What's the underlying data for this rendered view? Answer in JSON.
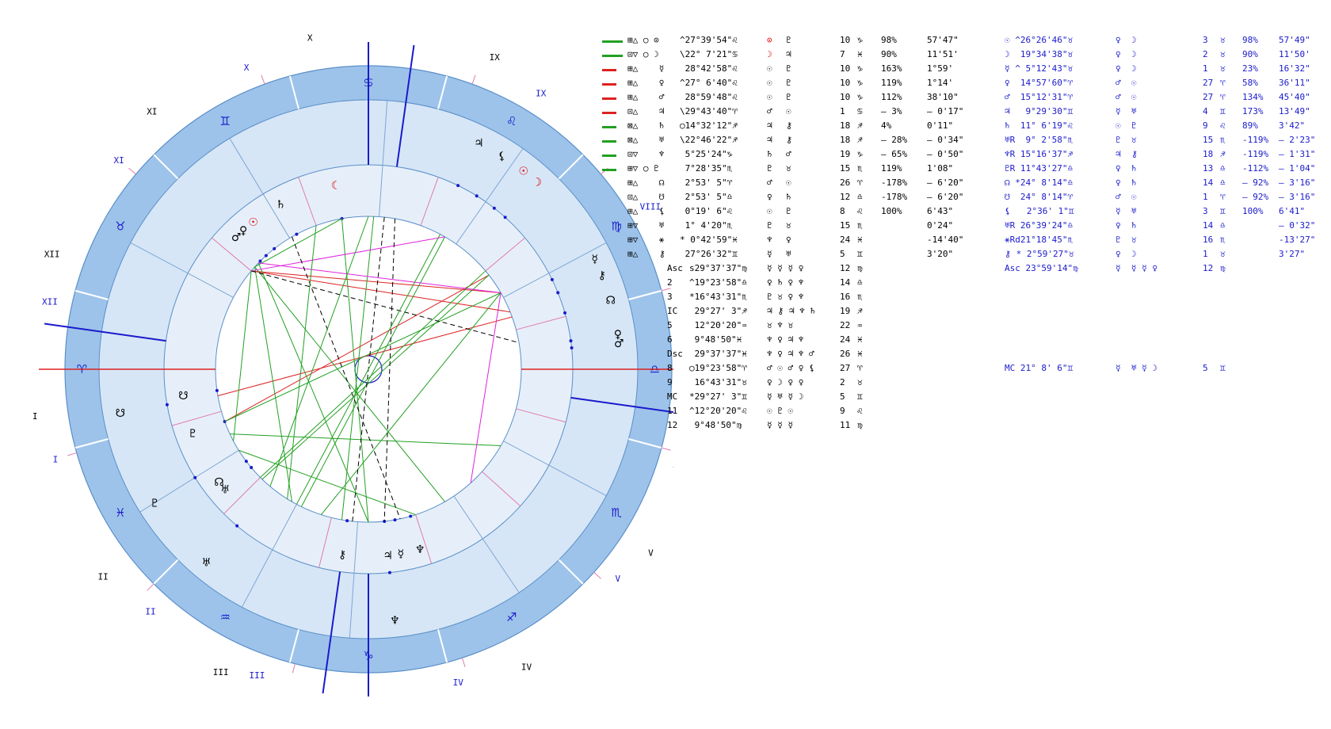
{
  "wheel": {
    "outer_house_labels": [
      {
        "label": "X"
      },
      {
        "label": "IX"
      },
      {
        "label": "XI"
      },
      {
        "label": "XII"
      },
      {
        "label": "I"
      },
      {
        "label": "II"
      },
      {
        "label": "III"
      },
      {
        "label": "IV"
      },
      {
        "label": "V"
      },
      {
        "label": "VI"
      },
      {
        "label": "VII"
      },
      {
        "label": "VIII"
      }
    ],
    "inner_house_labels": [
      {
        "label": "X"
      },
      {
        "label": "IX"
      },
      {
        "label": "XI"
      },
      {
        "label": "XII"
      },
      {
        "label": "I"
      },
      {
        "label": "II"
      },
      {
        "label": "III"
      },
      {
        "label": "IV"
      },
      {
        "label": "V"
      },
      {
        "label": "VI"
      },
      {
        "label": "VII"
      },
      {
        "label": "VIII"
      }
    ],
    "zodiac_signs": [
      "♋",
      "♊",
      "♉",
      "♈",
      "♓",
      "♒",
      "♑",
      "♐",
      "♏",
      "♎",
      "♍",
      "♌"
    ],
    "inner_planets": [
      {
        "glyph": "♄"
      },
      {
        "glyph": "☾"
      },
      {
        "glyph": "♂"
      },
      {
        "glyph": "♀"
      },
      {
        "glyph": "☉"
      },
      {
        "glyph": "☋"
      },
      {
        "glyph": "♇"
      },
      {
        "glyph": "☊"
      },
      {
        "glyph": "♅"
      },
      {
        "glyph": "⚷"
      },
      {
        "glyph": "♃"
      },
      {
        "glyph": "☿"
      },
      {
        "glyph": "♆"
      }
    ],
    "outer_planets": [
      {
        "glyph": "♃"
      },
      {
        "glyph": "⚸"
      },
      {
        "glyph": "☉"
      },
      {
        "glyph": "☽"
      },
      {
        "glyph": "☿"
      },
      {
        "glyph": "⚷"
      },
      {
        "glyph": "☊"
      },
      {
        "glyph": "♀"
      },
      {
        "glyph": "♂"
      },
      {
        "glyph": "♆"
      },
      {
        "glyph": "♅"
      },
      {
        "glyph": "♇"
      },
      {
        "glyph": "☋"
      }
    ]
  },
  "table_left": [
    {
      "aspect": "⊞△ ○ ⊙",
      "pos": "^27°39'54\"♌",
      "r1": "⊙",
      "r2": "♇",
      "house": "10",
      "deg": "♑",
      "pct": "98%",
      "t": "57'47\""
    },
    {
      "aspect": "⊡▽ ○ ☽",
      "pos": "\\22° 7'21\"♋",
      "r1": "☽",
      "r2": "♃",
      "house": "7",
      "deg": "♓",
      "pct": "90%",
      "t": "11'51'"
    },
    {
      "aspect": "⊞△    ☿",
      "pos": " 28°42'58\"♌",
      "r1": "☉",
      "r2": "♇",
      "house": "10",
      "deg": "♑",
      "pct": "163%",
      "t": "1°59'"
    },
    {
      "aspect": "⊞△    ♀",
      "pos": "^27° 6'40\"♌",
      "r1": "☉",
      "r2": "♇",
      "house": "10",
      "deg": "♑",
      "pct": "119%",
      "t": "1°14'"
    },
    {
      "aspect": "⊞△    ♂",
      "pos": " 28°59'48\"♌",
      "r1": "☉",
      "r2": "♇",
      "house": "10",
      "deg": "♑",
      "pct": "112%",
      "t": "38'10\""
    },
    {
      "aspect": "⊡△    ♃",
      "pos": "\\29°43'40\"♈",
      "r1": "♂",
      "r2": "☉",
      "house": "1",
      "deg": "♋",
      "pct": "– 3%",
      "t": "– 0'17\""
    },
    {
      "aspect": "⊠△    ♄",
      "pos": "○14°32'12\"♐",
      "r1": "♃",
      "r2": "⚷",
      "house": "18",
      "deg": "♐",
      "pct": "4%",
      "t": "0'11\""
    },
    {
      "aspect": "⊠△    ♅",
      "pos": "\\22°46'22\"♐",
      "r1": "♃",
      "r2": "⚷",
      "house": "18",
      "deg": "♐",
      "pct": "– 28%",
      "t": "– 0'34\""
    },
    {
      "aspect": "⊡▽    ♆",
      "pos": " 5°25'24\"♑",
      "r1": "♄",
      "r2": "♂",
      "house": "19",
      "deg": "♑",
      "pct": "– 65%",
      "t": "– 0'50\""
    },
    {
      "aspect": "⊞▽ ○ ♇",
      "pos": " 7°28'35\"♏",
      "r1": "♇",
      "r2": "♉",
      "house": "15",
      "deg": "♏",
      "pct": "119%",
      "t": "1'08\""
    },
    {
      "aspect": "⊞△    ☊",
      "pos": " 2°53' 5\"♈",
      "r1": "♂",
      "r2": "☉",
      "house": "26",
      "deg": "♈",
      "pct": "-178%",
      "t": "– 6'20\""
    },
    {
      "aspect": "⊡△    ☋",
      "pos": " 2°53' 5\"♎",
      "r1": "♀",
      "r2": "♄",
      "house": "12",
      "deg": "♎",
      "pct": "-178%",
      "t": "– 6'20\""
    },
    {
      "aspect": "⊞△    ⚸",
      "pos": " 0°19' 6\"♌",
      "r1": "☉",
      "r2": "♇",
      "house": "8",
      "deg": "♌",
      "pct": "100%",
      "t": "6'43\""
    },
    {
      "aspect": "⊞▽    ♅",
      "pos": " 1° 4'20\"♏",
      "r1": "♇",
      "r2": "♉",
      "house": "15",
      "deg": "♏",
      "pct": "",
      "t": "0'24\""
    },
    {
      "aspect": "⊞▽    ⚹",
      "pos": "* 0°42'59\"♓",
      "r1": "♆",
      "r2": "♀",
      "house": "24",
      "deg": "♓",
      "pct": "",
      "t": "-14'40\""
    },
    {
      "aspect": "⊞△    ⚷",
      "pos": " 27°26'32\"♊",
      "r1": "☿",
      "r2": "♅",
      "house": "5",
      "deg": "♊",
      "pct": "",
      "t": "3'20\""
    }
  ],
  "cusps_left": [
    {
      "label": "Asc",
      "pos": "s29°37'37\"♍",
      "rulers": "☿ ☿ ☿ ♀",
      "house": "12",
      "deg": "♍"
    },
    {
      "label": "2",
      "pos": "^19°23'58\"♎",
      "rulers": "♀ ♄ ♀ ♆",
      "house": "14",
      "deg": "♎"
    },
    {
      "label": "3",
      "pos": "*16°43'31\"♏",
      "rulers": "♇ ♉ ♀ ♆",
      "house": "16",
      "deg": "♏"
    },
    {
      "label": "IC",
      "pos": " 29°27' 3\"♐",
      "rulers": "♃ ⚷ ♃ ♆ ♄",
      "house": "19",
      "deg": "♐"
    },
    {
      "label": "5",
      "pos": " 12°20'20\"♒",
      "rulers": "♉ ♆ ♉",
      "house": "22",
      "deg": "♒"
    },
    {
      "label": "6",
      "pos": " 9°48'50\"♓",
      "rulers": "♆ ♀ ♃ ♆",
      "house": "24",
      "deg": "♓"
    },
    {
      "label": "Dsc",
      "pos": " 29°37'37\"♓",
      "rulers": "♆ ♀ ♃ ♆ ♂",
      "house": "26",
      "deg": "♓"
    },
    {
      "label": "8",
      "pos": "○19°23'58\"♈",
      "rulers": "♂ ☉ ♂ ♀ ⚸",
      "house": "27",
      "deg": "♈"
    },
    {
      "label": "9",
      "pos": " 16°43'31\"♉",
      "rulers": "♀ ☽ ♀ ♀",
      "house": "2",
      "deg": "♉"
    },
    {
      "label": "MC",
      "pos": "*29°27' 3\"♊",
      "rulers": "☿ ♅ ☿ ☽",
      "house": "5",
      "deg": "♊"
    },
    {
      "label": "11",
      "pos": "^12°20'20\"♌",
      "rulers": "☉ ♇ ☉",
      "house": "9",
      "deg": "♌"
    },
    {
      "label": "12",
      "pos": " 9°48'50\"♍",
      "rulers": "☿ ☿ ☿",
      "house": "11",
      "deg": "♍"
    }
  ],
  "table_right": [
    {
      "planet": "☉ ^26°26'46\"♉",
      "r": "♀  ☽",
      "house": "3",
      "deg": "♉",
      "pct": "98%",
      "t": "57'49\""
    },
    {
      "planet": "☽  19°34'38\"♉",
      "r": "♀  ☽",
      "house": "2",
      "deg": "♉",
      "pct": "90%",
      "t": "11'50'"
    },
    {
      "planet": "☿ ^ 5°12'43\"♉",
      "r": "♀  ☽",
      "house": "1",
      "deg": "♉",
      "pct": "23%",
      "t": "16'32\""
    },
    {
      "planet": "♀  14°57'60\"♈",
      "r": "♂  ☉",
      "house": "27",
      "deg": "♈",
      "pct": "58%",
      "t": "36'11\""
    },
    {
      "planet": "♂  15°12'31\"♈",
      "r": "♂  ☉",
      "house": "27",
      "deg": "♈",
      "pct": "134%",
      "t": "45'40\""
    },
    {
      "planet": "♃   9°29'30\"♊",
      "r": "☿  ♅",
      "house": "4",
      "deg": "♊",
      "pct": "173%",
      "t": "13'49\""
    },
    {
      "planet": "♄  11° 6'19\"♌",
      "r": "☉  ♇",
      "house": "9",
      "deg": "♌",
      "pct": "89%",
      "t": "3'42\""
    },
    {
      "planet": "♅R  9° 2'58\"♏",
      "r": "♇  ♉",
      "house": "15",
      "deg": "♏",
      "pct": "-119%",
      "t": "– 2'23\""
    },
    {
      "planet": "♆R 15°16'37\"♐",
      "r": "♃  ⚷",
      "house": "18",
      "deg": "♐",
      "pct": "-119%",
      "t": "– 1'31\""
    },
    {
      "planet": "♇R 11°43'27\"♎",
      "r": "♀  ♄",
      "house": "13",
      "deg": "♎",
      "pct": "-112%",
      "t": "– 1'04\""
    },
    {
      "planet": "☊ *24° 8'14\"♎",
      "r": "♀  ♄",
      "house": "14",
      "deg": "♎",
      "pct": "– 92%",
      "t": "– 3'16\""
    },
    {
      "planet": "☋  24° 8'14\"♈",
      "r": "♂  ☉",
      "house": "1",
      "deg": "♈",
      "pct": "– 92%",
      "t": "– 3'16\""
    },
    {
      "planet": "⚸   2°36' 1\"♊",
      "r": "☿  ♅",
      "house": "3",
      "deg": "♊",
      "pct": "100%",
      "t": "6'41\""
    },
    {
      "planet": "♅R 26°39'24\"♎",
      "r": "♀  ♄",
      "house": "14",
      "deg": "♎",
      "pct": "",
      "t": "– 0'32\""
    },
    {
      "planet": "⚹Rd21°18'45\"♏",
      "r": "♇  ♉",
      "house": "16",
      "deg": "♏",
      "pct": "",
      "t": "-13'27\""
    },
    {
      "planet": "⚷ * 2°59'27\"♉",
      "r": "♀  ☽",
      "house": "1",
      "deg": "♉",
      "pct": "",
      "t": "3'27\""
    },
    {
      "planet": "Asc 23°59'14\"♍",
      "r": "☿  ☿ ☿ ♀",
      "house": "12",
      "deg": "♍",
      "pct": "",
      "t": ""
    }
  ],
  "mc_right": {
    "planet": "MC 21° 8' 6\"♊",
    "r": "☿  ♅ ☿ ☽",
    "house": "5",
    "deg": "♊"
  },
  "colors": {
    "ring_fill": "#9dc3ea",
    "ring_fill_light": "#d6e6f6",
    "inner_fill": "#e6eff9",
    "aspect_green": "#22a022",
    "aspect_red": "#dd2222",
    "aspect_magenta": "#dd22dd",
    "axis_blue": "#1a1acc"
  }
}
